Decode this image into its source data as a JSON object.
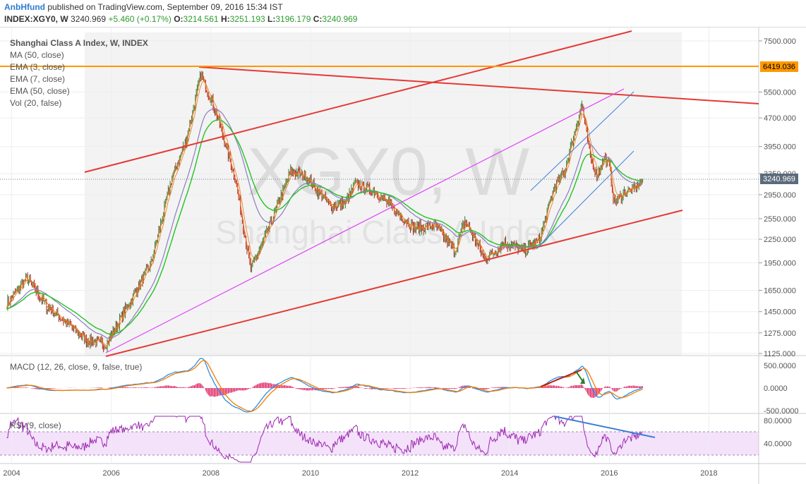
{
  "header": {
    "author": "AnbHfund",
    "published": "published on TradingView.com, September 09, 2016 15:34 IST",
    "symbol": "INDEX:XGY0, W",
    "price": "3240.969",
    "change": "+5.460 (+0.17%)",
    "ohlc": [
      {
        "k": "O:",
        "v": "3214.561"
      },
      {
        "k": "H:",
        "v": "3251.193"
      },
      {
        "k": "L:",
        "v": "3196.179"
      },
      {
        "k": "C:",
        "v": "3240.969"
      }
    ]
  },
  "legend": [
    "Shanghai Class A Index, W, INDEX",
    "MA (50, close)",
    "EMA (3, close)",
    "EMA (7, close)",
    "EMA (50, close)",
    "Vol (20, false)"
  ],
  "watermark": {
    "symbol": "XGY0, W",
    "name": "Shanghai Class A Index"
  },
  "price_badges": {
    "last": "3240.969",
    "level": "6419.036"
  },
  "macd_title": "MACD (12, 26, close, 9, false, true)",
  "rsi_title": "RSI (9, close)",
  "colors": {
    "up": "#2e7d32",
    "down": "#b71c1c",
    "channel": "#e53935",
    "magenta": "#e040fb",
    "blue_trend": "#3d7ed9",
    "level": "#ff9800",
    "ema_green": "#22c322",
    "ma_purple": "#8e7cc3",
    "rsi": "#9c27b0"
  },
  "chart_data": [
    {
      "type": "line",
      "title": "Shanghai Class A Index, W, INDEX",
      "y_scale": "log",
      "ylim": [
        1125,
        7500
      ],
      "xlim": [
        2003.85,
        2019.0
      ],
      "yticks": [
        "7500.000",
        "5500.000",
        "4700.000",
        "3950.000",
        "3350.000",
        "2950.000",
        "2550.000",
        "2250.000",
        "1950.000",
        "1650.000",
        "1450.000",
        "1275.000",
        "1125.000"
      ],
      "xticks": [
        "2004",
        "2006",
        "2008",
        "2010",
        "2012",
        "2014",
        "2016",
        "2018"
      ],
      "series": [
        {
          "x": [
            2003.9,
            2004.3,
            2004.7,
            2005.0,
            2005.5,
            2005.9,
            2006.3,
            2006.8,
            2007.2,
            2007.5,
            2007.8,
            2008.1,
            2008.5,
            2008.8,
            2009.1,
            2009.6,
            2009.9,
            2010.4,
            2010.7,
            2010.9,
            2011.3,
            2011.8,
            2012.1,
            2012.5,
            2012.9,
            2013.1,
            2013.5,
            2013.9,
            2014.3,
            2014.6,
            2014.9,
            2015.1,
            2015.3,
            2015.45,
            2015.6,
            2015.75,
            2015.9,
            2016.0,
            2016.1,
            2016.3,
            2016.5,
            2016.67
          ],
          "y": [
            1520,
            1780,
            1500,
            1390,
            1220,
            1190,
            1480,
            1950,
            3200,
            4100,
            6100,
            4900,
            3200,
            1870,
            2300,
            3400,
            3300,
            2750,
            2800,
            3150,
            3000,
            2600,
            2400,
            2450,
            2090,
            2520,
            2000,
            2200,
            2100,
            2250,
            3100,
            3400,
            4300,
            5100,
            3800,
            3300,
            3700,
            3500,
            2800,
            3000,
            3050,
            3240
          ]
        }
      ]
    },
    {
      "type": "line",
      "title": "MACD (12, 26, close, 9, false, true)",
      "ylim": [
        -500,
        500
      ],
      "yticks": [
        "500.0000",
        "0.0000",
        "-500.0000"
      ]
    },
    {
      "type": "line",
      "title": "RSI (9, close)",
      "ylim": [
        20,
        95
      ],
      "yticks": [
        "80.0000",
        "40.0000"
      ]
    }
  ]
}
